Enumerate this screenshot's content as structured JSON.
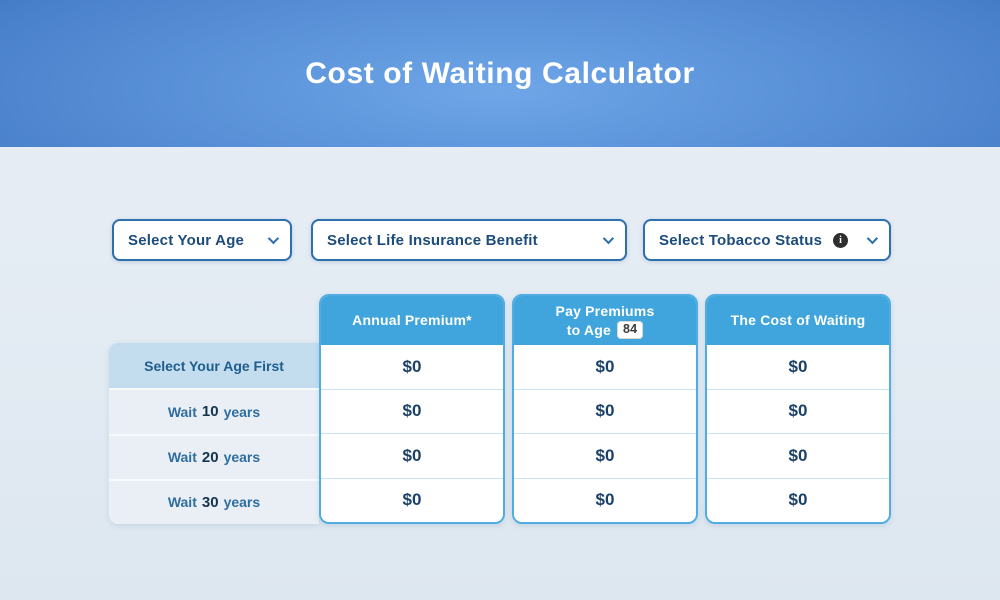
{
  "header": {
    "title": "Cost of Waiting Calculator"
  },
  "filters": {
    "age": {
      "label": "Select Your Age"
    },
    "benefit": {
      "label": "Select Life Insurance Benefit"
    },
    "tobacco": {
      "label": "Select Tobacco Status"
    }
  },
  "icons": {
    "info_glyph": "i"
  },
  "table": {
    "columns": {
      "premium": {
        "label": "Annual Premium*"
      },
      "pay_to_age": {
        "line1": "Pay Premiums",
        "line2": "to Age",
        "age": "84"
      },
      "cost": {
        "label": "The Cost of Waiting"
      }
    },
    "rows": [
      {
        "label": "Select Your Age First",
        "values": [
          "$0",
          "$0",
          "$0"
        ]
      },
      {
        "prefix": "Wait",
        "number": "10",
        "suffix": "years",
        "values": [
          "$0",
          "$0",
          "$0"
        ]
      },
      {
        "prefix": "Wait",
        "number": "20",
        "suffix": "years",
        "values": [
          "$0",
          "$0",
          "$0"
        ]
      },
      {
        "prefix": "Wait",
        "number": "30",
        "suffix": "years",
        "values": [
          "$0",
          "$0",
          "$0"
        ]
      }
    ]
  },
  "colors": {
    "hero_gradient_center": "#6ea6e8",
    "hero_gradient_edge": "#14498f",
    "table_header_blue": "#3fa5dc",
    "column_border_blue": "#4fade2",
    "dropdown_border_blue": "#2e6fae",
    "text_navy": "#1c4c7c",
    "value_navy": "#1b4168",
    "row_highlight_blue": "#c3ddee",
    "row_alt_gray": "#e9eff5",
    "page_background": "#e3ebf3"
  }
}
